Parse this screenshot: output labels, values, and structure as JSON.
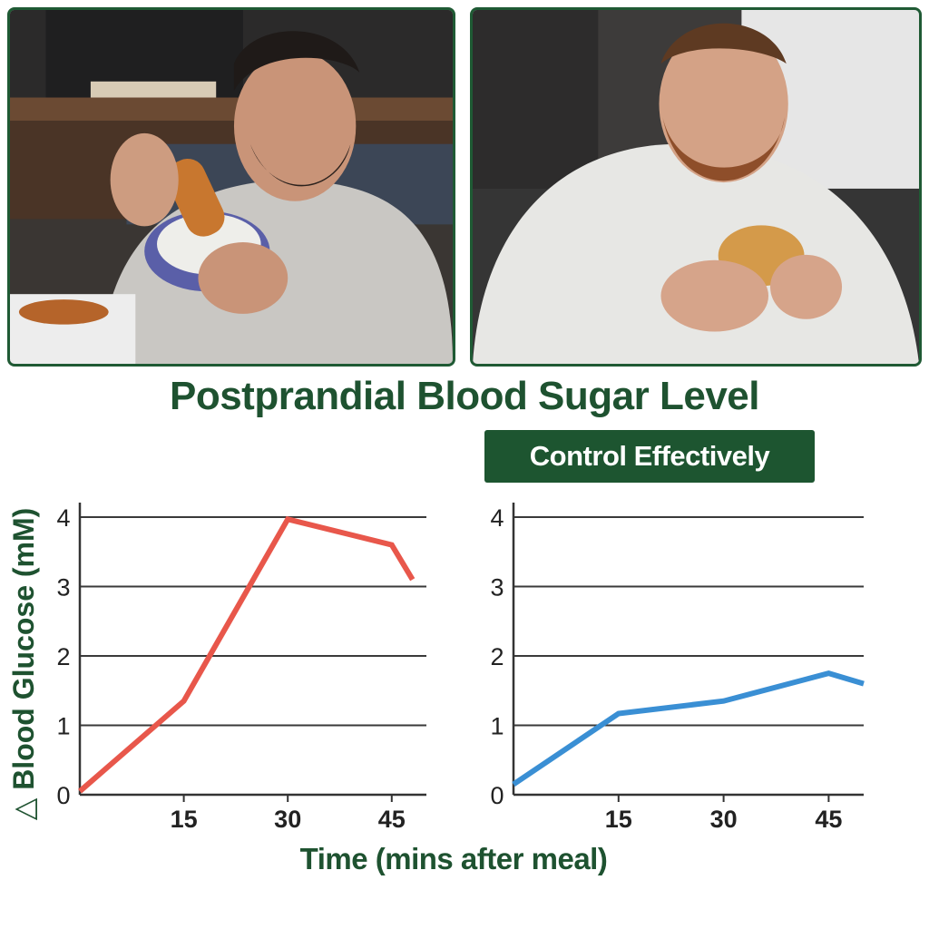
{
  "title": "Postprandial Blood Sugar Level",
  "badge": "Control Effectively",
  "y_axis_label": "△ Blood Glucose (mM)",
  "x_axis_label": "Time (mins after meal)",
  "colors": {
    "brand_green": "#1e5230",
    "left_line": "#e8574b",
    "right_line": "#3a8fd4",
    "grid": "#3a3a3a"
  },
  "photos": [
    {
      "description_icon": "man-eating-pastry-on-couch-photo"
    },
    {
      "description_icon": "bearded-man-eating-bun-photo"
    }
  ],
  "chart_data": [
    {
      "type": "line",
      "x": [
        0,
        15,
        30,
        45,
        48
      ],
      "series": [
        {
          "values": [
            0.05,
            1.35,
            3.97,
            3.6,
            3.1
          ],
          "color": "#e8574b"
        }
      ],
      "xticks": [
        "15",
        "30",
        "45"
      ],
      "xtick_values": [
        15,
        30,
        45
      ],
      "yticks": [
        "0",
        "1",
        "2",
        "3",
        "4"
      ],
      "ytick_values": [
        0,
        1,
        2,
        3,
        4
      ],
      "xlim": [
        0,
        50
      ],
      "ylim": [
        0,
        4
      ],
      "grid": true
    },
    {
      "type": "line",
      "x": [
        0,
        15,
        30,
        45,
        50
      ],
      "series": [
        {
          "values": [
            0.15,
            1.17,
            1.35,
            1.75,
            1.6
          ],
          "color": "#3a8fd4"
        }
      ],
      "xticks": [
        "15",
        "30",
        "45"
      ],
      "xtick_values": [
        15,
        30,
        45
      ],
      "yticks": [
        "0",
        "1",
        "2",
        "3",
        "4"
      ],
      "ytick_values": [
        0,
        1,
        2,
        3,
        4
      ],
      "xlim": [
        0,
        50
      ],
      "ylim": [
        0,
        4
      ],
      "grid": true
    }
  ]
}
